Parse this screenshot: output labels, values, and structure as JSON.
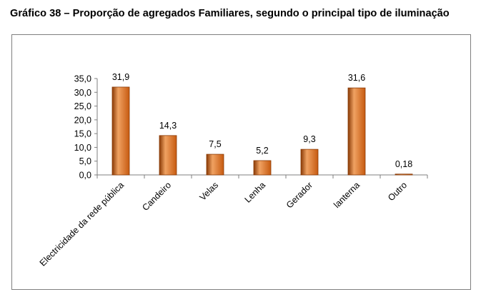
{
  "title": "Gráfico 38 – Proporção de agregados Familiares, segundo o principal tipo de iluminação",
  "colors": {
    "bar": "#c65a10",
    "bar_light": "#f0a262",
    "bar_dark": "#8a3a06",
    "axis": "#7f7f7f"
  },
  "chart_data": {
    "type": "bar",
    "title": "Gráfico 38 – Proporção de agregados Familiares, segundo o principal tipo de iluminação",
    "xlabel": "",
    "ylabel": "",
    "ylim": [
      0,
      35
    ],
    "yticks": [
      "0,0",
      "5,0",
      "10,0",
      "15,0",
      "20,0",
      "25,0",
      "30,0",
      "35,0"
    ],
    "categories": [
      "Electricidade da rede pública",
      "Candeiro",
      "Velas",
      "Lenha",
      "Gerador",
      "lanterna",
      "Outro"
    ],
    "values": [
      31.9,
      14.3,
      7.5,
      5.2,
      9.3,
      31.6,
      0.18
    ],
    "value_labels": [
      "31,9",
      "14,3",
      "7,5",
      "5,2",
      "9,3",
      "31,6",
      "0,18"
    ],
    "grid": false,
    "legend": "none"
  }
}
